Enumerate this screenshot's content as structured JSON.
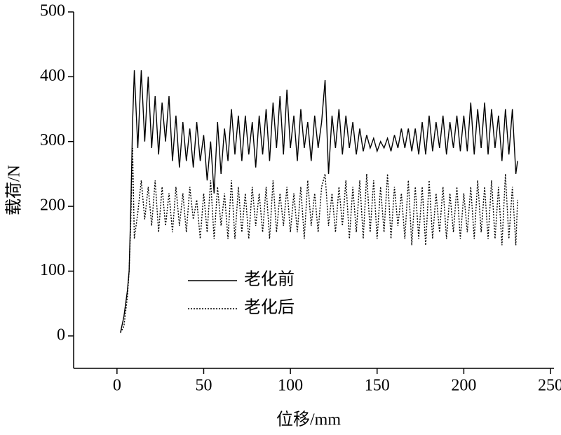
{
  "chart_data": {
    "type": "line",
    "xlabel": "位移/mm",
    "ylabel": "载荷/N",
    "x": [
      2,
      4,
      6,
      7,
      8,
      9,
      10,
      12,
      14,
      16,
      18,
      20,
      22,
      24,
      26,
      28,
      30,
      32,
      34,
      36,
      38,
      40,
      42,
      44,
      46,
      48,
      50,
      52,
      54,
      56,
      58,
      60,
      62,
      64,
      66,
      68,
      70,
      72,
      74,
      76,
      78,
      80,
      82,
      84,
      86,
      88,
      90,
      92,
      94,
      96,
      98,
      100,
      102,
      104,
      106,
      108,
      110,
      112,
      114,
      116,
      118,
      120,
      122,
      124,
      126,
      128,
      130,
      132,
      134,
      136,
      138,
      140,
      142,
      144,
      146,
      148,
      150,
      152,
      154,
      156,
      158,
      160,
      162,
      164,
      166,
      168,
      170,
      172,
      174,
      176,
      178,
      180,
      182,
      184,
      186,
      188,
      190,
      192,
      194,
      196,
      198,
      200,
      202,
      204,
      206,
      208,
      210,
      212,
      214,
      216,
      218,
      220,
      222,
      224,
      226,
      228,
      230,
      231
    ],
    "series": [
      {
        "name": "老化前",
        "color": "#000000",
        "dash": "solid",
        "values": [
          5,
          30,
          70,
          100,
          200,
          330,
          410,
          290,
          410,
          300,
          400,
          290,
          370,
          280,
          360,
          300,
          370,
          270,
          340,
          260,
          330,
          270,
          320,
          260,
          330,
          270,
          310,
          240,
          300,
          220,
          330,
          250,
          320,
          270,
          350,
          280,
          340,
          270,
          340,
          280,
          330,
          260,
          340,
          280,
          350,
          270,
          360,
          290,
          370,
          280,
          380,
          290,
          340,
          270,
          350,
          290,
          330,
          270,
          340,
          290,
          330,
          395,
          250,
          340,
          290,
          350,
          280,
          340,
          290,
          330,
          280,
          320,
          285,
          310,
          290,
          305,
          285,
          300,
          290,
          305,
          285,
          310,
          290,
          320,
          290,
          320,
          285,
          320,
          280,
          330,
          280,
          340,
          285,
          330,
          290,
          340,
          280,
          330,
          290,
          340,
          285,
          340,
          285,
          360,
          280,
          350,
          290,
          360,
          280,
          350,
          290,
          340,
          270,
          350,
          280,
          350,
          250,
          270
        ]
      },
      {
        "name": "老化后",
        "color": "#000000",
        "dash": "dotted",
        "values": [
          5,
          15,
          60,
          100,
          180,
          290,
          150,
          190,
          240,
          180,
          230,
          170,
          240,
          160,
          230,
          170,
          220,
          160,
          230,
          170,
          220,
          160,
          230,
          180,
          210,
          150,
          220,
          160,
          240,
          150,
          230,
          170,
          220,
          150,
          240,
          150,
          230,
          160,
          220,
          150,
          230,
          170,
          220,
          160,
          230,
          150,
          240,
          160,
          220,
          170,
          230,
          160,
          220,
          160,
          230,
          150,
          240,
          170,
          220,
          160,
          230,
          250,
          170,
          220,
          160,
          230,
          170,
          240,
          150,
          230,
          160,
          240,
          150,
          250,
          160,
          240,
          150,
          230,
          160,
          250,
          150,
          230,
          170,
          220,
          150,
          240,
          140,
          230,
          150,
          230,
          140,
          240,
          150,
          220,
          160,
          230,
          150,
          220,
          160,
          230,
          150,
          220,
          160,
          230,
          150,
          240,
          160,
          230,
          150,
          240,
          150,
          230,
          140,
          250,
          150,
          230,
          140,
          210
        ]
      }
    ],
    "xlim": [
      -25,
      252
    ],
    "ylim": [
      -50,
      500
    ],
    "xticks": [
      0,
      50,
      100,
      150,
      200,
      250
    ],
    "yticks": [
      0,
      100,
      200,
      300,
      400,
      500
    ]
  }
}
